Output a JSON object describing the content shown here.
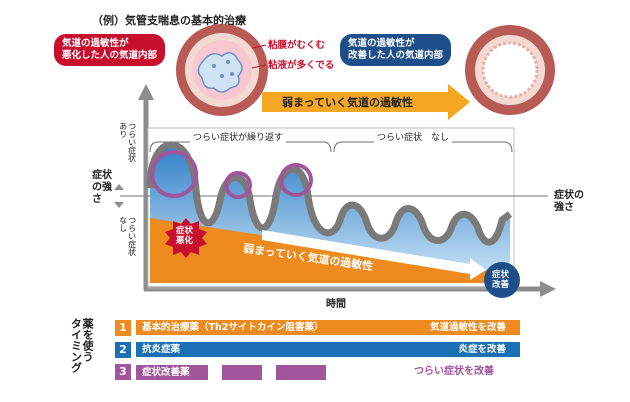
{
  "title": "（例）気管支喘息の基本的治療",
  "callouts": {
    "left": "気道の過敏性が\n悪化した人の気道内部",
    "right": "気道の過敏性が\n改善した人の気道内部",
    "mucosa": "粘膜がむくむ",
    "mucus": "粘液が多くでる"
  },
  "arrow_label": "弱まっていく気道の過敏性",
  "y_axis": {
    "label": "症状の強さ",
    "upper": "つらい症状\nあり",
    "lower": "つらい症状\nなし"
  },
  "phases": {
    "repeat": "つらい症状が繰り返す",
    "none": "つらい症状　なし"
  },
  "right_label": "症状の\n強さ",
  "badges": {
    "worse": "症状\n悪化",
    "better": "症状\n改善"
  },
  "orange_label": "弱まっていく気道の過敏性",
  "x_axis_label": "時間",
  "timing_label": "薬を使う\nタイミング",
  "rows": [
    {
      "num": "1",
      "name": "基本的治療薬（Th2サイトカイン阻害薬）",
      "effect": "気道過敏性を改善",
      "color": "#ef8a1e"
    },
    {
      "num": "2",
      "name": "抗炎症薬",
      "effect": "炎症を改善",
      "color": "#1a6fb5"
    },
    {
      "num": "3",
      "name": "症状改善薬",
      "effect": "つらい症状を改善",
      "color": "#a0559c"
    }
  ],
  "colors": {
    "orange": "#ef8a1e",
    "blue": "#1a6fb5",
    "purple": "#a0559c",
    "red": "#c8102e",
    "navy": "#1f4f8a",
    "gray": "#8c8c8c"
  }
}
